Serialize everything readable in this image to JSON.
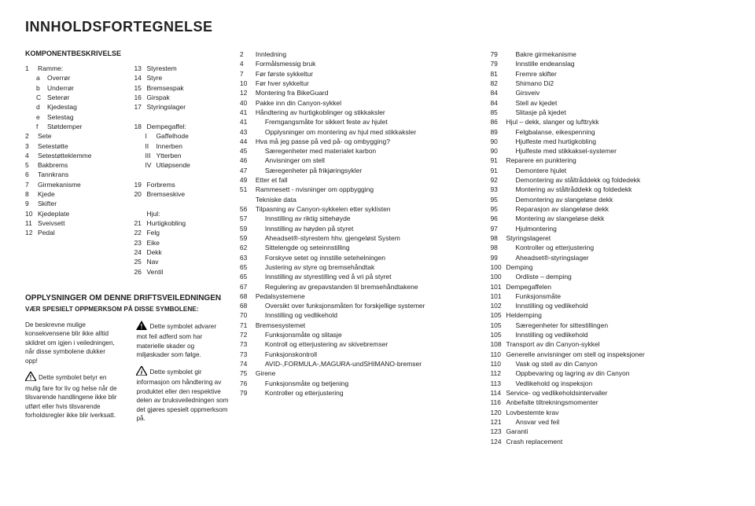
{
  "title": "INNHOLDSFORTEGNELSE",
  "section1_head": "KOMPONENTBESKRIVELSE",
  "col1": [
    {
      "idx": "1",
      "label": "Ramme:"
    },
    {
      "sub": "a",
      "label": "Overrør"
    },
    {
      "sub": "b",
      "label": "Underrør"
    },
    {
      "sub": "C",
      "label": "Seterør"
    },
    {
      "sub": "d",
      "label": "Kjedestag"
    },
    {
      "sub": "e",
      "label": "Setestag"
    },
    {
      "sub": "f",
      "label": "Støtdemper"
    },
    {
      "idx": "2",
      "label": "Sete"
    },
    {
      "idx": "3",
      "label": "Setestøtte"
    },
    {
      "idx": "4",
      "label": "Setestøtteklemme"
    },
    {
      "idx": "5",
      "label": "Bakbrems"
    },
    {
      "idx": "6",
      "label": "Tannkrans"
    },
    {
      "idx": "7",
      "label": "Girmekanisme"
    },
    {
      "idx": "8",
      "label": "Kjede"
    },
    {
      "idx": "9",
      "label": "Skifter"
    },
    {
      "idx": "10",
      "label": "Kjedeplate"
    },
    {
      "idx": "11",
      "label": "Sveivsett"
    },
    {
      "idx": "12",
      "label": "Pedal"
    }
  ],
  "col2": [
    {
      "idx": "13",
      "label": "Styrestem"
    },
    {
      "idx": "14",
      "label": "Styre"
    },
    {
      "idx": "15",
      "label": "Bremsespak"
    },
    {
      "idx": "16",
      "label": "Girspak"
    },
    {
      "idx": "17",
      "label": "Styringslager"
    },
    {
      "idx": "",
      "label": ""
    },
    {
      "idx": "18",
      "label": "Dempegaffel:"
    },
    {
      "sub": "I",
      "label": "Gaffelhode"
    },
    {
      "sub": "II",
      "label": "Innerben"
    },
    {
      "sub": "III",
      "label": "Ytterben"
    },
    {
      "sub": "IV",
      "label": "Utløpsende"
    },
    {
      "idx": "",
      "label": ""
    },
    {
      "idx": "19",
      "label": "Forbrems"
    },
    {
      "idx": "20",
      "label": "Bremseskive"
    },
    {
      "idx": "",
      "label": ""
    },
    {
      "idx": "",
      "label": "Hjul:"
    },
    {
      "idx": "21",
      "label": "Hurtigkobling"
    },
    {
      "idx": "22",
      "label": "Felg"
    },
    {
      "idx": "23",
      "label": "Eike"
    },
    {
      "idx": "24",
      "label": "Dekk"
    },
    {
      "idx": "25",
      "label": "Nav"
    },
    {
      "idx": "26",
      "label": "Ventil"
    }
  ],
  "bottom": {
    "head": "OPPLYSNINGER OM DENNE DRIFTSVEILEDNINGEN",
    "sub": "VÆR SPESIELT OPPMERKSOM PÅ DISSE SYMBOLENE:",
    "left1": "De beskrevne mulige konsekvensene blir ikke alltid skildret om igjen i veiledningen, når disse symbolene dukker opp!",
    "left2": "Dette symbolet betyr en mulig fare for liv og helse når de tilsvarende handlingene ikke blir utført eller hvis tilsvarende forholdsregler ikke blir iverksatt.",
    "right1": "Dette symbolet advarer mot feil adferd som har materielle skader og miljøskader som følge.",
    "right2": "Dette symbolet gir informasjon om håndtering av produktet eller den respektive delen av bruksveiledningen som det gjøres spesielt oppmerksom på."
  },
  "toc1": [
    {
      "p": "2",
      "t": "Innledning"
    },
    {
      "p": "4",
      "t": "Formålsmessig bruk"
    },
    {
      "p": "7",
      "t": "Før første sykkeltur"
    },
    {
      "p": "10",
      "t": "Før hver sykkeltur"
    },
    {
      "p": "12",
      "t": "Montering fra BikeGuard"
    },
    {
      "p": "40",
      "t": "Pakke inn din Canyon-sykkel"
    },
    {
      "p": "41",
      "t": "Håndtering av hurtigkoblinger og stikkaksler"
    },
    {
      "p": "41",
      "t": "Fremgangsmåte for sikkert feste av hjulet",
      "i": 1
    },
    {
      "p": "43",
      "t": "Opplysninger om montering av hjul med stikkaksler",
      "i": 1
    },
    {
      "p": "44",
      "t": "Hva må jeg passe på ved på- og ombygging?"
    },
    {
      "p": "45",
      "t": "Særegenheter med materialet karbon",
      "i": 1
    },
    {
      "p": "46",
      "t": "Anvisninger om stell",
      "i": 1
    },
    {
      "p": "47",
      "t": "Særegenheter på frikjøringsykler",
      "i": 1
    },
    {
      "p": "49",
      "t": "Etter et fall"
    },
    {
      "p": "51",
      "t": "Rammesett - nvisninger om oppbygging"
    },
    {
      "p": "",
      "t": "Tekniske data"
    },
    {
      "p": "56",
      "t": "Tilpasning av Canyon-sykkelen etter syklisten"
    },
    {
      "p": "57",
      "t": "Innstilling av riktig sittehøyde",
      "i": 1
    },
    {
      "p": "59",
      "t": "Innstilling av høyden på styret",
      "i": 1
    },
    {
      "p": "59",
      "t": "Aheadset®-styrestem hhv. gjengeløst System",
      "i": 1
    },
    {
      "p": "62",
      "t": "Sittelengde og seteinnstilling",
      "i": 1
    },
    {
      "p": "63",
      "t": "Forskyve setet og innstille setehelningen",
      "i": 1
    },
    {
      "p": "65",
      "t": "Justering av styre og bremsehåndtak",
      "i": 1
    },
    {
      "p": "65",
      "t": "Innstilling av styrestilling ved å vri på styret",
      "i": 1
    },
    {
      "p": "67",
      "t": "Regulering av grepavstanden til bremsehåndtakene",
      "i": 1
    },
    {
      "p": "68",
      "t": "Pedalsystemene"
    },
    {
      "p": "68",
      "t": "Oversikt over funksjonsmåten for forskjellige systemer",
      "i": 1
    },
    {
      "p": "70",
      "t": "Innstilling og vedlikehold",
      "i": 1
    },
    {
      "p": "71",
      "t": "Bremsesystemet"
    },
    {
      "p": "72",
      "t": "Funksjonsmåte og slitasje",
      "i": 1
    },
    {
      "p": "73",
      "t": "Kontroll og etterjustering av skivebremser",
      "i": 1
    },
    {
      "p": "73",
      "t": "Funksjonskontroll",
      "i": 1
    },
    {
      "p": "74",
      "t": "AVID-,FORMULA-,MAGURA-undSHIMANO-bremser",
      "i": 1
    },
    {
      "p": "75",
      "t": "Girene"
    },
    {
      "p": "76",
      "t": "Funksjonsmåte og betjening",
      "i": 1
    },
    {
      "p": "79",
      "t": "Kontroller og etterjustering",
      "i": 1
    }
  ],
  "toc2": [
    {
      "p": "79",
      "t": "Bakre girmekanisme",
      "i": 1
    },
    {
      "p": "79",
      "t": "Innstille endeanslag",
      "i": 1
    },
    {
      "p": "81",
      "t": "Fremre skifter",
      "i": 1
    },
    {
      "p": "82",
      "t": "Shimano Di2",
      "i": 1
    },
    {
      "p": "84",
      "t": "Girsveiv",
      "i": 1
    },
    {
      "p": "84",
      "t": "Stell av kjedet",
      "i": 1
    },
    {
      "p": "85",
      "t": "Slitasje på kjedet",
      "i": 1
    },
    {
      "p": "86",
      "t": "Hjul – dekk, slanger og lufttrykk"
    },
    {
      "p": "89",
      "t": "Felgbalanse, eikespenning",
      "i": 1
    },
    {
      "p": "90",
      "t": "Hjulfeste med hurtigkobling",
      "i": 1
    },
    {
      "p": "90",
      "t": "Hjulfeste med stikkaksel-systemer",
      "i": 1
    },
    {
      "p": "91",
      "t": "Reparere en punktering"
    },
    {
      "p": "91",
      "t": "Demontere hjulet",
      "i": 1
    },
    {
      "p": "92",
      "t": "Demontering av ståltråddekk og foldedekk",
      "i": 1
    },
    {
      "p": "93",
      "t": "Montering av ståltråddekk og foldedekk",
      "i": 1
    },
    {
      "p": "95",
      "t": "Demontering av slangeløse dekk",
      "i": 1
    },
    {
      "p": "95",
      "t": "Reparasjon av slangeløse dekk",
      "i": 1
    },
    {
      "p": "96",
      "t": "Montering av slangeløse dekk",
      "i": 1
    },
    {
      "p": "97",
      "t": "Hjulmontering",
      "i": 1
    },
    {
      "p": "98",
      "t": "Styringslageret"
    },
    {
      "p": "98",
      "t": "Kontroller og etterjustering",
      "i": 1
    },
    {
      "p": "99",
      "t": "Aheadset®-styringslager",
      "i": 1
    },
    {
      "p": "100",
      "t": "Demping"
    },
    {
      "p": "100",
      "t": "Ordliste – demping",
      "i": 1
    },
    {
      "p": "101",
      "t": "Dempegaffelen"
    },
    {
      "p": "101",
      "t": "Funksjonsmåte",
      "i": 1
    },
    {
      "p": "102",
      "t": "Innstilling og vedlikehold",
      "i": 1
    },
    {
      "p": "105",
      "t": "Heldemping"
    },
    {
      "p": "105",
      "t": "Særegenheter for sittestillingen",
      "i": 1
    },
    {
      "p": "105",
      "t": "Innstilling og vedlikehold",
      "i": 1
    },
    {
      "p": "108",
      "t": "Transport av din Canyon-sykkel"
    },
    {
      "p": "110",
      "t": "Generelle anvisninger om stell og inspeksjoner"
    },
    {
      "p": "110",
      "t": "Vask og stell av din Canyon",
      "i": 1
    },
    {
      "p": "112",
      "t": "Oppbevaring og lagring av din Canyon",
      "i": 1
    },
    {
      "p": "113",
      "t": "Vedlikehold og inspeksjon",
      "i": 1
    },
    {
      "p": "114",
      "t": "Service- og vedlikeholdsintervaller"
    },
    {
      "p": "116",
      "t": "Anbefalte tiltrekningsmomenter"
    },
    {
      "p": "120",
      "t": "Lovbestemte krav"
    },
    {
      "p": "121",
      "t": "Ansvar ved feil",
      "i": 1
    },
    {
      "p": "123",
      "t": "Garanti"
    },
    {
      "p": "124",
      "t": "Crash replacement"
    }
  ]
}
